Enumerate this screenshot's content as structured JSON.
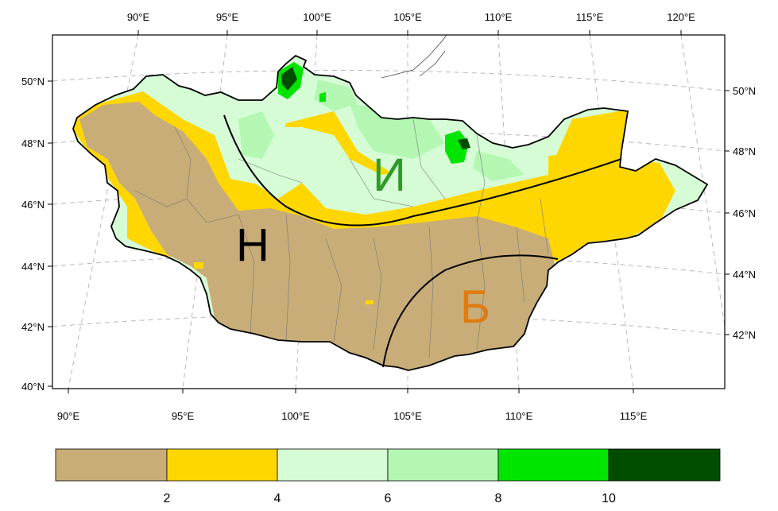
{
  "map": {
    "top_lon_labels": [
      "90°E",
      "95°E",
      "100°E",
      "105°E",
      "110°E",
      "115°E",
      "120°E"
    ],
    "bottom_lon_labels": [
      "90°E",
      "95°E",
      "100°E",
      "105°E",
      "110°E",
      "115°E"
    ],
    "left_lat_labels": [
      "50°N",
      "48°N",
      "46°N",
      "44°N",
      "42°N",
      "40°N"
    ],
    "right_lat_labels": [
      "50°N",
      "48°N",
      "46°N",
      "44°N",
      "42°N"
    ],
    "zones": [
      {
        "letter": "И",
        "color": "#2e9a28"
      },
      {
        "letter": "Н",
        "color": "#000000"
      },
      {
        "letter": "Б",
        "color": "#e07b10"
      }
    ],
    "legend": {
      "colors": [
        "#c8ad78",
        "#ffd700",
        "#d6fcd6",
        "#b3f7b3",
        "#00e500",
        "#004d00"
      ],
      "tick_values": [
        "2",
        "4",
        "6",
        "8",
        "10"
      ]
    }
  }
}
